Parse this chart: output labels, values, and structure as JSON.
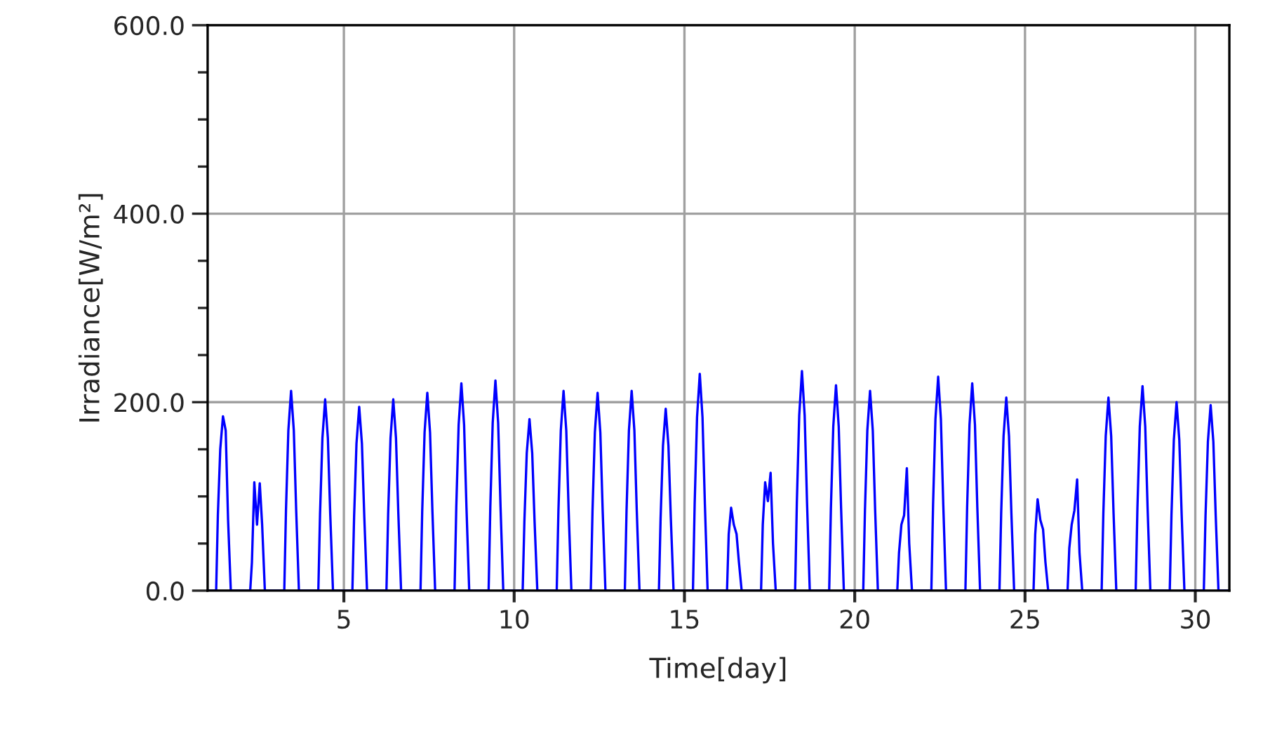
{
  "chart_data": {
    "type": "line",
    "xlabel": "Time[day]",
    "ylabel": "Irradiance[W/m²]",
    "xlim": [
      1,
      31
    ],
    "xticks": [
      5,
      10,
      15,
      20,
      25,
      30
    ],
    "ylim": [
      0,
      600
    ],
    "yticks": [
      {
        "value": 0,
        "label": "0.0"
      },
      {
        "value": 50,
        "label": null
      },
      {
        "value": 100,
        "label": null
      },
      {
        "value": 150,
        "label": null
      },
      {
        "value": 200,
        "label": "200.0"
      },
      {
        "value": 250,
        "label": null
      },
      {
        "value": 300,
        "label": null
      },
      {
        "value": 350,
        "label": null
      },
      {
        "value": 400,
        "label": "400.0"
      },
      {
        "value": 450,
        "label": null
      },
      {
        "value": 500,
        "label": null
      },
      {
        "value": 550,
        "label": null
      },
      {
        "value": 600,
        "label": "600.0"
      }
    ],
    "grid": true,
    "marker": "none",
    "line_style": "solid",
    "series": [
      {
        "color": "#0000ff",
        "x": [
          1,
          1.25,
          1.3,
          1.37,
          1.45,
          1.53,
          1.6,
          1.68,
          2.25,
          2.3,
          2.37,
          2.45,
          2.53,
          2.6,
          2.68,
          3.25,
          3.3,
          3.37,
          3.45,
          3.53,
          3.6,
          3.68,
          4.25,
          4.3,
          4.37,
          4.45,
          4.53,
          4.6,
          4.68,
          5.25,
          5.3,
          5.37,
          5.45,
          5.53,
          5.6,
          5.68,
          6.25,
          6.3,
          6.37,
          6.45,
          6.53,
          6.6,
          6.68,
          7.25,
          7.3,
          7.37,
          7.45,
          7.53,
          7.6,
          7.68,
          8.25,
          8.3,
          8.37,
          8.45,
          8.53,
          8.6,
          8.68,
          9.25,
          9.3,
          9.37,
          9.45,
          9.53,
          9.6,
          9.68,
          10.25,
          10.3,
          10.37,
          10.45,
          10.53,
          10.6,
          10.68,
          11.25,
          11.3,
          11.37,
          11.45,
          11.53,
          11.6,
          11.68,
          12.25,
          12.3,
          12.37,
          12.45,
          12.53,
          12.6,
          12.68,
          13.25,
          13.3,
          13.37,
          13.45,
          13.53,
          13.6,
          13.68,
          14.25,
          14.3,
          14.37,
          14.45,
          14.53,
          14.6,
          14.68,
          15.25,
          15.3,
          15.37,
          15.45,
          15.53,
          15.6,
          15.68,
          16.25,
          16.3,
          16.37,
          16.45,
          16.53,
          16.6,
          16.68,
          17.25,
          17.3,
          17.37,
          17.45,
          17.53,
          17.6,
          17.68,
          18.25,
          18.3,
          18.37,
          18.45,
          18.53,
          18.6,
          18.68,
          19.25,
          19.3,
          19.37,
          19.45,
          19.53,
          19.6,
          19.68,
          20.25,
          20.3,
          20.37,
          20.45,
          20.53,
          20.6,
          20.68,
          21.25,
          21.3,
          21.37,
          21.45,
          21.53,
          21.6,
          21.68,
          22.25,
          22.3,
          22.37,
          22.45,
          22.53,
          22.6,
          22.68,
          23.25,
          23.3,
          23.37,
          23.45,
          23.53,
          23.6,
          23.68,
          24.25,
          24.3,
          24.37,
          24.45,
          24.53,
          24.6,
          24.68,
          25.25,
          25.3,
          25.37,
          25.45,
          25.53,
          25.6,
          25.68,
          26.25,
          26.3,
          26.37,
          26.45,
          26.53,
          26.6,
          26.68,
          27.25,
          27.3,
          27.37,
          27.45,
          27.53,
          27.6,
          27.68,
          28.25,
          28.3,
          28.37,
          28.45,
          28.53,
          28.6,
          28.68,
          29.25,
          29.3,
          29.37,
          29.45,
          29.53,
          29.6,
          29.68,
          30.25,
          30.3,
          30.37,
          30.45,
          30.53,
          30.6,
          30.68,
          31
        ],
        "values": [
          0,
          0,
          80,
          150,
          185,
          170,
          75,
          0,
          0,
          30,
          115,
          70,
          114,
          70,
          0,
          0,
          85,
          170,
          212,
          170,
          85,
          0,
          0,
          81,
          162,
          203,
          162,
          81,
          0,
          0,
          78,
          156,
          195,
          156,
          78,
          0,
          0,
          81,
          162,
          203,
          162,
          81,
          0,
          0,
          84,
          168,
          210,
          168,
          84,
          0,
          0,
          88,
          176,
          220,
          176,
          88,
          0,
          0,
          89,
          178,
          223,
          178,
          89,
          0,
          0,
          73,
          146,
          182,
          146,
          73,
          0,
          0,
          85,
          170,
          212,
          170,
          85,
          0,
          0,
          84,
          168,
          210,
          168,
          84,
          0,
          0,
          85,
          170,
          212,
          170,
          85,
          0,
          0,
          77,
          154,
          193,
          154,
          77,
          0,
          0,
          92,
          184,
          230,
          184,
          92,
          0,
          0,
          60,
          88,
          70,
          60,
          30,
          0,
          0,
          70,
          115,
          95,
          125,
          50,
          0,
          0,
          93,
          186,
          233,
          186,
          93,
          0,
          0,
          87,
          174,
          218,
          174,
          87,
          0,
          0,
          85,
          170,
          212,
          170,
          85,
          0,
          0,
          40,
          70,
          80,
          130,
          50,
          0,
          0,
          91,
          182,
          227,
          182,
          91,
          0,
          0,
          88,
          176,
          220,
          176,
          88,
          0,
          0,
          82,
          164,
          205,
          164,
          82,
          0,
          0,
          60,
          97,
          75,
          65,
          30,
          0,
          0,
          45,
          70,
          85,
          118,
          40,
          0,
          0,
          82,
          164,
          205,
          164,
          82,
          0,
          0,
          87,
          174,
          217,
          174,
          87,
          0,
          0,
          80,
          160,
          200,
          160,
          80,
          0,
          0,
          79,
          158,
          197,
          158,
          79,
          0,
          0
        ]
      }
    ]
  }
}
